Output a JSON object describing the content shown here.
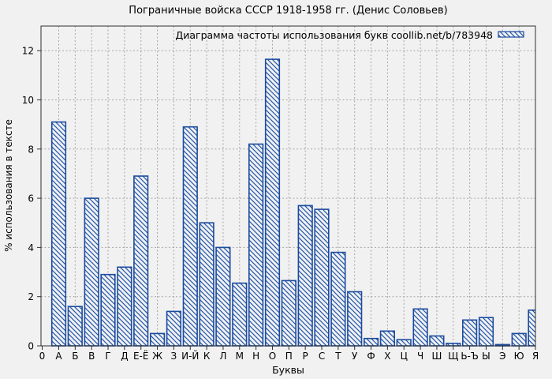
{
  "chart_data": {
    "type": "bar",
    "title": "Пограничные войска СССР 1918-1958 гг. (Денис Соловьев)",
    "legend": {
      "label": "Диаграмма частоты использования букв coollib.net/b/783948",
      "position": "top-right-inside",
      "swatch": "blue-diagonal-hatch"
    },
    "xlabel": "Буквы",
    "ylabel": "% использования в тексте",
    "origin_tick_label": "0",
    "categories": [
      "А",
      "Б",
      "В",
      "Г",
      "Д",
      "Е-Ё",
      "Ж",
      "З",
      "И-Й",
      "К",
      "Л",
      "М",
      "Н",
      "О",
      "П",
      "Р",
      "С",
      "Т",
      "У",
      "Ф",
      "Х",
      "Ц",
      "Ч",
      "Ш",
      "Щ",
      "Ь-Ъ",
      "Ы",
      "Э",
      "Ю",
      "Я"
    ],
    "values": [
      9.1,
      1.6,
      6.0,
      2.9,
      3.2,
      6.9,
      0.5,
      1.4,
      8.9,
      5.0,
      4.0,
      2.55,
      8.2,
      11.65,
      2.65,
      5.7,
      5.55,
      3.8,
      2.2,
      0.3,
      0.6,
      0.25,
      1.5,
      0.4,
      0.1,
      1.05,
      1.15,
      0.05,
      0.5,
      1.45
    ],
    "ylim": [
      0,
      13
    ],
    "yticks": [
      0,
      2,
      4,
      6,
      8,
      10,
      12
    ],
    "grid": "dashed-both-axes",
    "bar_style": "diagonal-hatch-outline",
    "colors": {
      "bar_border": "#1b4b9e",
      "bar_hatch": "#2357ab",
      "bar_fill": "#f1f1f1",
      "grid": "#a6a6a6",
      "axis": "#303030",
      "background": "#f1f1f1",
      "text": "#000000"
    }
  }
}
